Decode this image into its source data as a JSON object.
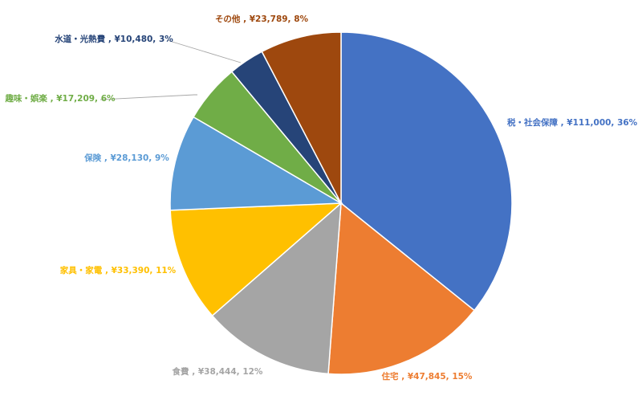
{
  "chart_data": {
    "type": "pie",
    "title": "",
    "start_angle_deg": 0,
    "direction": "clockwise",
    "slices": [
      {
        "label": "税・社会保障",
        "value": 111000,
        "value_text": "¥111,000",
        "percent_text": "36%",
        "color": "#4472C4"
      },
      {
        "label": "住宅",
        "value": 47845,
        "value_text": "¥47,845",
        "percent_text": "15%",
        "color": "#ED7D31"
      },
      {
        "label": "食費",
        "value": 38444,
        "value_text": "¥38,444",
        "percent_text": "12%",
        "color": "#A5A5A5"
      },
      {
        "label": "家具・家電",
        "value": 33390,
        "value_text": "¥33,390",
        "percent_text": "11%",
        "color": "#FFC000"
      },
      {
        "label": "保険",
        "value": 28130,
        "value_text": "¥28,130",
        "percent_text": "9%",
        "color": "#5B9BD5"
      },
      {
        "label": "趣味・娯楽",
        "value": 17209,
        "value_text": "¥17,209",
        "percent_text": "6%",
        "color": "#70AD47"
      },
      {
        "label": "水道・光熱費",
        "value": 10480,
        "value_text": "¥10,480",
        "percent_text": "3%",
        "color": "#264478"
      },
      {
        "label": "その他",
        "value": 23789,
        "value_text": "¥23,789",
        "percent_text": "8%",
        "color": "#9E480E"
      }
    ],
    "data_labels": [
      "税・社会保障 , ¥111,000, 36%",
      "住宅 , ¥47,845, 15%",
      "食費 , ¥38,444, 12%",
      "家具・家電 , ¥33,390, 11%",
      "保険 , ¥28,130, 9%",
      "趣味・娯楽 , ¥17,209, 6%",
      "水道・光熱費 , ¥10,480, 3%",
      "その他 , ¥23,789, 8%"
    ]
  }
}
